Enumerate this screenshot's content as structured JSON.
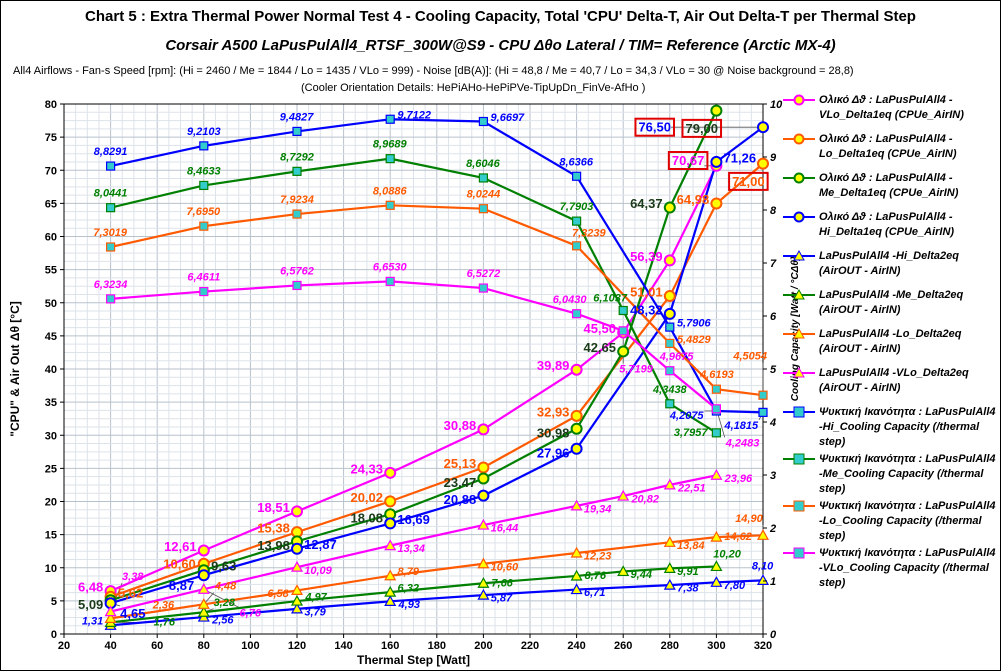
{
  "header": {
    "title": "Chart 5 :  Extra Thermal Power  Normal  Test  4  -  Cooling Capacity,   Total 'CPU' Delta-T,   Air Out Delta-T per Thermal Step",
    "subtitle": "Corsair A500  LaPusPulAll4_RTSF_300W@S9 - CPU  Δθο Lateral / TIM= Reference (Arctic MX-4)",
    "info1": "All4  Airflows  - Fan-s Speed [rpm]: (Hi = 2460 / Me = 1844 / Lo = 1435 / VLo = 999) - Noise [dB(A)]: (Hi = 48,8 / Me = 40,7 / Lo = 34,3 / VLo = 30 @ Noise background = 28,8)",
    "info2": "(Cooler Orientation Details: HePiAHo-HePiPVe-TipUpDn_FinVe-AfHo )"
  },
  "chart_data": {
    "type": "line",
    "xlabel": "Thermal Step [Watt]",
    "ylabel": "\"CPU\"  &  Air Out  Δθ  [°C]",
    "y2label": "Cooling Capacity  [Watt / °CΔθ]",
    "xlim": [
      20,
      320
    ],
    "ylim": [
      0,
      80
    ],
    "y2lim": [
      0,
      10
    ],
    "xticks": [
      20,
      40,
      60,
      80,
      100,
      120,
      140,
      160,
      180,
      200,
      220,
      240,
      260,
      280,
      300,
      320
    ],
    "yticks": [
      0,
      5,
      10,
      15,
      20,
      25,
      30,
      35,
      40,
      45,
      50,
      55,
      60,
      65,
      70,
      75,
      80
    ],
    "y2ticks": [
      0,
      1,
      2,
      3,
      4,
      5,
      6,
      7,
      8,
      9,
      10
    ],
    "grid": true,
    "legend": "right",
    "series": [
      {
        "name": "Ολικό Δϑ : LaPusPulAll4 - VLo_Delta1eq  (CPUe_AirIN)",
        "kind": "delta1",
        "axis": "left",
        "color": "#ff00ff",
        "marker": "circle",
        "x": [
          40,
          80,
          120,
          160,
          200,
          240,
          260,
          280,
          300
        ],
        "y": [
          6.48,
          12.61,
          18.51,
          24.33,
          30.88,
          39.89,
          45.5,
          56.39,
          70.67
        ]
      },
      {
        "name": "Ολικό Δϑ : LaPusPulAll4 - Lo_Delta1eq  (CPUe_AirIN)",
        "kind": "delta1",
        "axis": "left",
        "color": "#ff5a00",
        "marker": "circle",
        "x": [
          40,
          80,
          120,
          160,
          200,
          240,
          280,
          300,
          320
        ],
        "y": [
          5.62,
          10.6,
          15.38,
          20.02,
          25.13,
          32.93,
          51.01,
          64.98,
          71.0
        ]
      },
      {
        "name": "Ολικό Δϑ : LaPusPulAll4 - Me_Delta1eq  (CPUe_AirIN)",
        "kind": "delta1",
        "axis": "left",
        "color": "#008000",
        "marker": "circle",
        "x": [
          40,
          80,
          120,
          160,
          200,
          240,
          260,
          280,
          300
        ],
        "y": [
          5.09,
          9.63,
          13.98,
          18.08,
          23.47,
          30.98,
          42.65,
          64.37,
          79.0
        ]
      },
      {
        "name": "Ολικό Δϑ : LaPusPulAll4 - Hi_Delta1eq  (CPUe_AirIN)",
        "kind": "delta1",
        "axis": "left",
        "color": "#0000ff",
        "marker": "circle",
        "x": [
          40,
          80,
          120,
          160,
          200,
          240,
          280,
          300,
          320
        ],
        "y": [
          4.65,
          8.87,
          12.87,
          16.69,
          20.88,
          27.96,
          48.32,
          71.26,
          76.5
        ]
      },
      {
        "name": "LaPusPulAll4 -Hi_Delta2eq  (AirOUT - AirIN)",
        "kind": "delta2",
        "axis": "left",
        "color": "#0000ff",
        "marker": "triangle",
        "x": [
          40,
          80,
          120,
          160,
          200,
          240,
          280,
          300,
          320
        ],
        "y": [
          1.31,
          2.56,
          3.79,
          4.93,
          5.87,
          6.71,
          7.38,
          7.8,
          8.1
        ]
      },
      {
        "name": "LaPusPulAll4 -Me_Delta2eq  (AirOUT - AirIN)",
        "kind": "delta2",
        "axis": "left",
        "color": "#008000",
        "marker": "triangle",
        "x": [
          40,
          80,
          120,
          160,
          200,
          240,
          260,
          280,
          300
        ],
        "y": [
          1.76,
          3.28,
          4.97,
          6.32,
          7.66,
          8.76,
          9.44,
          9.91,
          10.2
        ]
      },
      {
        "name": "LaPusPulAll4 -Lo_Delta2eq  (AirOUT - AirIN)",
        "kind": "delta2",
        "axis": "left",
        "color": "#ff5a00",
        "marker": "triangle",
        "x": [
          40,
          80,
          120,
          160,
          200,
          240,
          280,
          300,
          320
        ],
        "y": [
          2.36,
          4.48,
          6.58,
          8.79,
          10.6,
          12.23,
          13.84,
          14.62,
          14.9
        ]
      },
      {
        "name": "LaPusPulAll4 -VLo_Delta2eq  (AirOUT - AirIN)",
        "kind": "delta2",
        "axis": "left",
        "color": "#ff00ff",
        "marker": "triangle",
        "x": [
          40,
          80,
          120,
          160,
          200,
          240,
          260,
          280,
          300
        ],
        "y": [
          3.38,
          6.76,
          10.09,
          13.34,
          16.44,
          19.34,
          20.82,
          22.51,
          23.96
        ]
      },
      {
        "name": "Ψυκτική Ικανότητα :  LaPusPulAll4 -Hi_Cooling Capacity (/thermal step)",
        "kind": "cap",
        "axis": "right",
        "color": "#0000ff",
        "marker": "square",
        "x": [
          40,
          80,
          120,
          160,
          200,
          240,
          280,
          300,
          320
        ],
        "y": [
          8.8291,
          9.2103,
          9.4827,
          9.7122,
          9.6697,
          8.6366,
          5.7906,
          4.2075,
          4.1815
        ]
      },
      {
        "name": "Ψυκτική Ικανότητα :  LaPusPulAll4 -Me_Cooling Capacity (/thermal step)",
        "kind": "cap",
        "axis": "right",
        "color": "#008000",
        "marker": "square",
        "x": [
          40,
          80,
          120,
          160,
          200,
          240,
          260,
          280,
          300
        ],
        "y": [
          8.0441,
          8.4633,
          8.7292,
          8.9689,
          8.6046,
          7.7903,
          6.1037,
          4.3438,
          3.7957
        ]
      },
      {
        "name": "Ψυκτική Ικανότητα :  LaPusPulAll4 -Lo_Cooling Capacity (/thermal step)",
        "kind": "cap",
        "axis": "right",
        "color": "#ff5a00",
        "marker": "square",
        "x": [
          40,
          80,
          120,
          160,
          200,
          240,
          280,
          300,
          320
        ],
        "y": [
          7.3019,
          7.695,
          7.9234,
          8.0886,
          8.0244,
          7.3239,
          5.4829,
          4.6193,
          4.5054
        ]
      },
      {
        "name": "Ψυκτική Ικανότητα :  LaPusPulAll4 -VLo_Cooling Capacity (/thermal step)",
        "kind": "cap",
        "axis": "right",
        "color": "#ff00ff",
        "marker": "square",
        "x": [
          40,
          80,
          120,
          160,
          200,
          240,
          260,
          280,
          300
        ],
        "y": [
          6.3234,
          6.4611,
          6.5762,
          6.653,
          6.5272,
          6.043,
          5.7199,
          4.9675,
          4.2483
        ]
      }
    ]
  }
}
